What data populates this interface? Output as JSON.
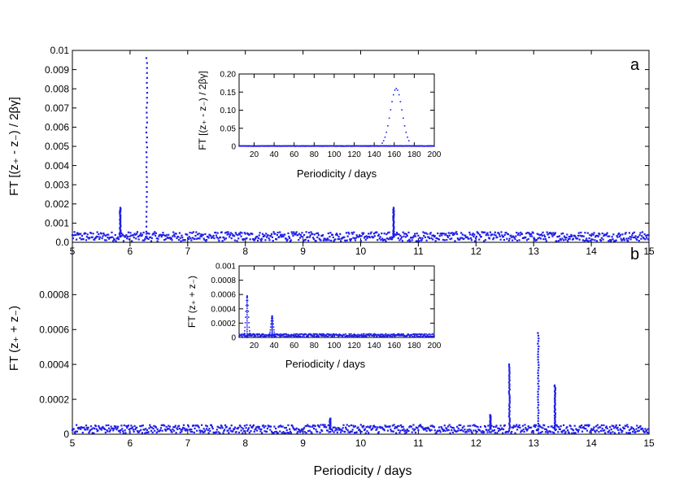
{
  "figure": {
    "xlabel": "Periodicity / days"
  },
  "chart_data": [
    {
      "type": "scatter",
      "panel_label": "a",
      "ylabel": "FT [(z₊ - z₋) / 2βγ]",
      "xlabel": "Periodicity / days",
      "xlim": [
        5,
        15
      ],
      "ylim": [
        0,
        0.01
      ],
      "xticks": [
        "5",
        "6",
        "7",
        "8",
        "9",
        "10",
        "11",
        "12",
        "13",
        "14",
        "15"
      ],
      "yticks": [
        "0.0",
        "0.001",
        "0.002",
        "0.003",
        "0.004",
        "0.005",
        "0.006",
        "0.007",
        "0.008",
        "0.009",
        "0.01"
      ],
      "baseline": 0.0003,
      "peaks": [
        {
          "x": 5.83,
          "y": 0.0018
        },
        {
          "x": 6.29,
          "y": 0.0096
        },
        {
          "x": 10.57,
          "y": 0.0018
        }
      ],
      "inset": {
        "type": "scatter",
        "ylabel": "FT [(z₊ - z₋) / 2βγ]",
        "xlabel": "Periodicity / days",
        "xlim": [
          5,
          200
        ],
        "ylim": [
          0,
          0.2
        ],
        "xticks": [
          "20",
          "40",
          "60",
          "80",
          "100",
          "120",
          "140",
          "160",
          "180",
          "200"
        ],
        "yticks": [
          "0",
          "0.05",
          "0.10",
          "0.15",
          "0.20"
        ],
        "peaks": [
          {
            "x": 162,
            "y": 0.16
          }
        ]
      }
    },
    {
      "type": "scatter",
      "panel_label": "b",
      "ylabel": "FT (z₊ + z₋)",
      "xlabel": "Periodicity / days",
      "xlim": [
        5,
        15
      ],
      "ylim": [
        0,
        0.0011
      ],
      "xticks": [
        "5",
        "6",
        "7",
        "8",
        "9",
        "10",
        "11",
        "12",
        "13",
        "14",
        "15"
      ],
      "yticks": [
        "0",
        "0.0002",
        "0.0004",
        "0.0006",
        "0.0008"
      ],
      "baseline": 3e-05,
      "peaks": [
        {
          "x": 9.47,
          "y": 9e-05
        },
        {
          "x": 12.25,
          "y": 0.00011
        },
        {
          "x": 12.58,
          "y": 0.0004
        },
        {
          "x": 13.08,
          "y": 0.00058
        },
        {
          "x": 13.37,
          "y": 0.00028
        }
      ],
      "inset": {
        "type": "scatter",
        "ylabel": "FT (z₊ + z₋)",
        "xlabel": "Periodicity / days",
        "xlim": [
          5,
          200
        ],
        "ylim": [
          0,
          0.001
        ],
        "xticks": [
          "20",
          "40",
          "60",
          "80",
          "100",
          "120",
          "140",
          "160",
          "180",
          "200"
        ],
        "yticks": [
          "0",
          "0.0002",
          "0.0004",
          "0.0006",
          "0.0008",
          "0.001"
        ],
        "peaks": [
          {
            "x": 13,
            "y": 0.00058
          },
          {
            "x": 38,
            "y": 0.0003
          }
        ]
      }
    }
  ],
  "colors": {
    "series": "#1f1fe8",
    "axis": "#000000"
  }
}
